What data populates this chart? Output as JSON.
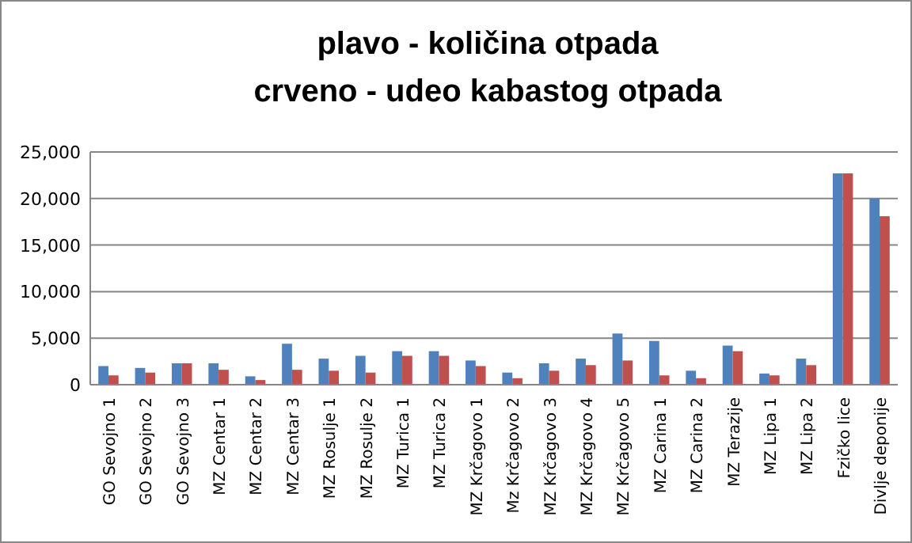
{
  "chart_data": {
    "type": "bar",
    "title": "plavo - količina otpada",
    "subtitle": "crveno - udeo kabastog otpada",
    "categories": [
      "GO Sevojno 1",
      "GO Sevojno 2",
      "GO Sevojno 3",
      "MZ Centar 1",
      "MZ Centar 2",
      "MZ Centar 3",
      "MZ Rosulje 1",
      "MZ Rosulje 2",
      "MZ Turica 1",
      "MZ Turica 2",
      "MZ Krčagovo 1",
      "Mz Krčagovo 2",
      "MZ Krčagovo 3",
      "MZ Krčagovo 4",
      "MZ Krčagovo 5",
      "MZ Carina 1",
      "MZ Carina 2",
      "MZ Terazije",
      "MZ Lipa 1",
      "MZ Lipa 2",
      "Fzičko lice",
      "Divlje deponije"
    ],
    "series": [
      {
        "color": "#4f81bd",
        "values": [
          2000,
          1800,
          2300,
          2300,
          900,
          4400,
          2800,
          3100,
          3600,
          3600,
          2600,
          1300,
          2300,
          2800,
          5500,
          4700,
          1500,
          4200,
          1200,
          2800,
          22700,
          20000
        ]
      },
      {
        "color": "#c0504d",
        "values": [
          1000,
          1300,
          2300,
          1600,
          500,
          1600,
          1500,
          1300,
          3100,
          3100,
          2000,
          700,
          1500,
          2100,
          2600,
          1000,
          700,
          3600,
          1000,
          2100,
          22700,
          18100
        ]
      }
    ],
    "ylim": [
      0,
      25000
    ],
    "yticks": [
      {
        "value": 0,
        "label": "0"
      },
      {
        "value": 5000,
        "label": "5,000"
      },
      {
        "value": 10000,
        "label": "10,000"
      },
      {
        "value": 15000,
        "label": "15,000"
      },
      {
        "value": 20000,
        "label": "20,000"
      },
      {
        "value": 25000,
        "label": "25,000"
      }
    ],
    "grid": true
  }
}
